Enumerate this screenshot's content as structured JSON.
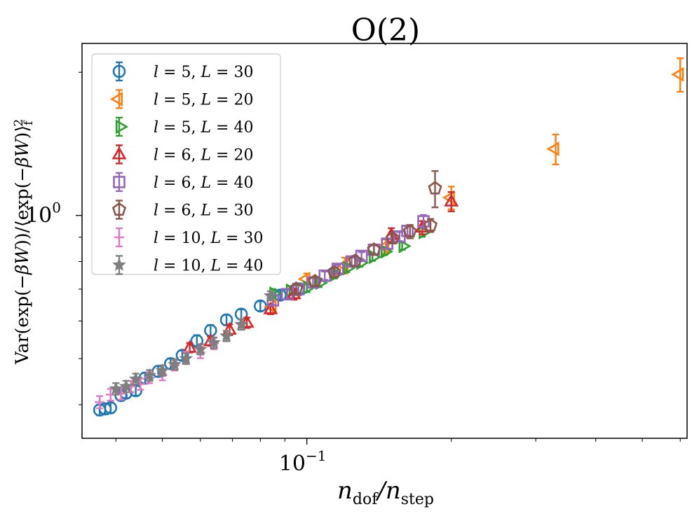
{
  "chart_data": {
    "type": "scatter",
    "title": "O(2)",
    "xlabel": "n_dof/n_step",
    "ylabel": "Var(exp(-βW))/⟨exp(-βW)⟩_f^2",
    "xscale": "log",
    "yscale": "log",
    "xlim": [
      0.034,
      0.62
    ],
    "ylim": [
      0.34,
      2.3
    ],
    "x_ticks": [
      {
        "value": 0.1,
        "base": "10",
        "exp": "−1"
      }
    ],
    "y_ticks": [
      {
        "value": 1.0,
        "base": "10",
        "exp": "0"
      }
    ],
    "legend_position": "top-left",
    "series": [
      {
        "name": "l = 5, L = 30",
        "l": "5",
        "L": "30",
        "marker": "circle",
        "color": "#1f77b4",
        "x": [
          0.037,
          0.038,
          0.039,
          0.041,
          0.042,
          0.044,
          0.046,
          0.049,
          0.052,
          0.055,
          0.059,
          0.063,
          0.068,
          0.073,
          0.08,
          0.088,
          0.096
        ],
        "y": [
          0.39,
          0.392,
          0.394,
          0.418,
          0.423,
          0.428,
          0.455,
          0.47,
          0.488,
          0.508,
          0.545,
          0.573,
          0.603,
          0.62,
          0.645,
          0.68,
          0.7
        ],
        "err": [
          0.01,
          0.01,
          0.01,
          0.01,
          0.01,
          0.01,
          0.012,
          0.012,
          0.012,
          0.012,
          0.015,
          0.015,
          0.015,
          0.015,
          0.015,
          0.015,
          0.02
        ]
      },
      {
        "name": "l = 5, L = 20",
        "l": "5",
        "L": "20",
        "marker": "triangle-left",
        "color": "#ff7f0e",
        "x": [
          0.085,
          0.1,
          0.12,
          0.146,
          0.2,
          0.33,
          0.6
        ],
        "y": [
          0.643,
          0.735,
          0.785,
          0.86,
          1.09,
          1.38,
          1.98
        ],
        "err": [
          0.02,
          0.02,
          0.03,
          0.03,
          0.06,
          0.1,
          0.16
        ]
      },
      {
        "name": "l = 5, L = 40",
        "l": "5",
        "L": "40",
        "marker": "triangle-right",
        "color": "#2ca02c",
        "x": [
          0.085,
          0.092,
          0.1,
          0.106,
          0.114,
          0.121,
          0.129,
          0.137,
          0.145,
          0.158,
          0.174
        ],
        "y": [
          0.685,
          0.695,
          0.705,
          0.722,
          0.752,
          0.775,
          0.795,
          0.818,
          0.84,
          0.862,
          0.922
        ],
        "err": [
          0.015,
          0.015,
          0.015,
          0.015,
          0.015,
          0.015,
          0.015,
          0.015,
          0.015,
          0.015,
          0.02
        ]
      },
      {
        "name": "l = 6, L = 20",
        "l": "6",
        "L": "20",
        "marker": "triangle-up",
        "color": "#d62728",
        "x": [
          0.057,
          0.063,
          0.069,
          0.075,
          0.084,
          0.094,
          0.15,
          0.174,
          0.2
        ],
        "y": [
          0.527,
          0.544,
          0.575,
          0.595,
          0.635,
          0.683,
          0.91,
          0.943,
          1.07
        ],
        "err": [
          0.012,
          0.012,
          0.015,
          0.015,
          0.015,
          0.018,
          0.03,
          0.03,
          0.05
        ]
      },
      {
        "name": "l = 6, L = 40",
        "l": "6",
        "L": "40",
        "marker": "square",
        "color": "#9467bd",
        "x": [
          0.085,
          0.091,
          0.096,
          0.103,
          0.109,
          0.116,
          0.124,
          0.13,
          0.138,
          0.147,
          0.156,
          0.162,
          0.175
        ],
        "y": [
          0.663,
          0.683,
          0.7,
          0.723,
          0.747,
          0.772,
          0.8,
          0.822,
          0.847,
          0.872,
          0.903,
          0.928,
          0.972
        ],
        "err": [
          0.015,
          0.015,
          0.015,
          0.015,
          0.015,
          0.015,
          0.015,
          0.015,
          0.018,
          0.02,
          0.02,
          0.02,
          0.03
        ]
      },
      {
        "name": "l = 6, L = 30",
        "l": "6",
        "L": "30",
        "marker": "pentagon",
        "color": "#8c564b",
        "x": [
          0.095,
          0.104,
          0.114,
          0.126,
          0.138,
          0.151,
          0.164,
          0.181,
          0.185
        ],
        "y": [
          0.701,
          0.727,
          0.76,
          0.802,
          0.847,
          0.895,
          0.925,
          0.953,
          1.14
        ],
        "err": [
          0.015,
          0.015,
          0.015,
          0.02,
          0.02,
          0.02,
          0.03,
          0.03,
          0.1
        ]
      },
      {
        "name": "l = 10, L = 30",
        "l": "10",
        "L": "30",
        "marker": "plus",
        "color": "#e377c2",
        "x": [
          0.037,
          0.039,
          0.041,
          0.043,
          0.045,
          0.047,
          0.05,
          0.053,
          0.056,
          0.06,
          0.064
        ],
        "y": [
          0.405,
          0.42,
          0.422,
          0.437,
          0.442,
          0.456,
          0.462,
          0.484,
          0.503,
          0.515,
          0.538
        ],
        "err": [
          0.012,
          0.012,
          0.012,
          0.012,
          0.012,
          0.012,
          0.012,
          0.012,
          0.014,
          0.014,
          0.015
        ]
      },
      {
        "name": "l = 10, L = 40",
        "l": "10",
        "L": "40",
        "marker": "star",
        "color": "#7f7f7f",
        "x": [
          0.04,
          0.042,
          0.044,
          0.047,
          0.05,
          0.053,
          0.056,
          0.06,
          0.064,
          0.068,
          0.073,
          0.084
        ],
        "y": [
          0.432,
          0.437,
          0.453,
          0.461,
          0.472,
          0.486,
          0.5,
          0.523,
          0.54,
          0.558,
          0.59,
          0.678
        ],
        "err": [
          0.012,
          0.012,
          0.012,
          0.012,
          0.012,
          0.012,
          0.013,
          0.013,
          0.014,
          0.014,
          0.015,
          0.015
        ]
      }
    ]
  }
}
